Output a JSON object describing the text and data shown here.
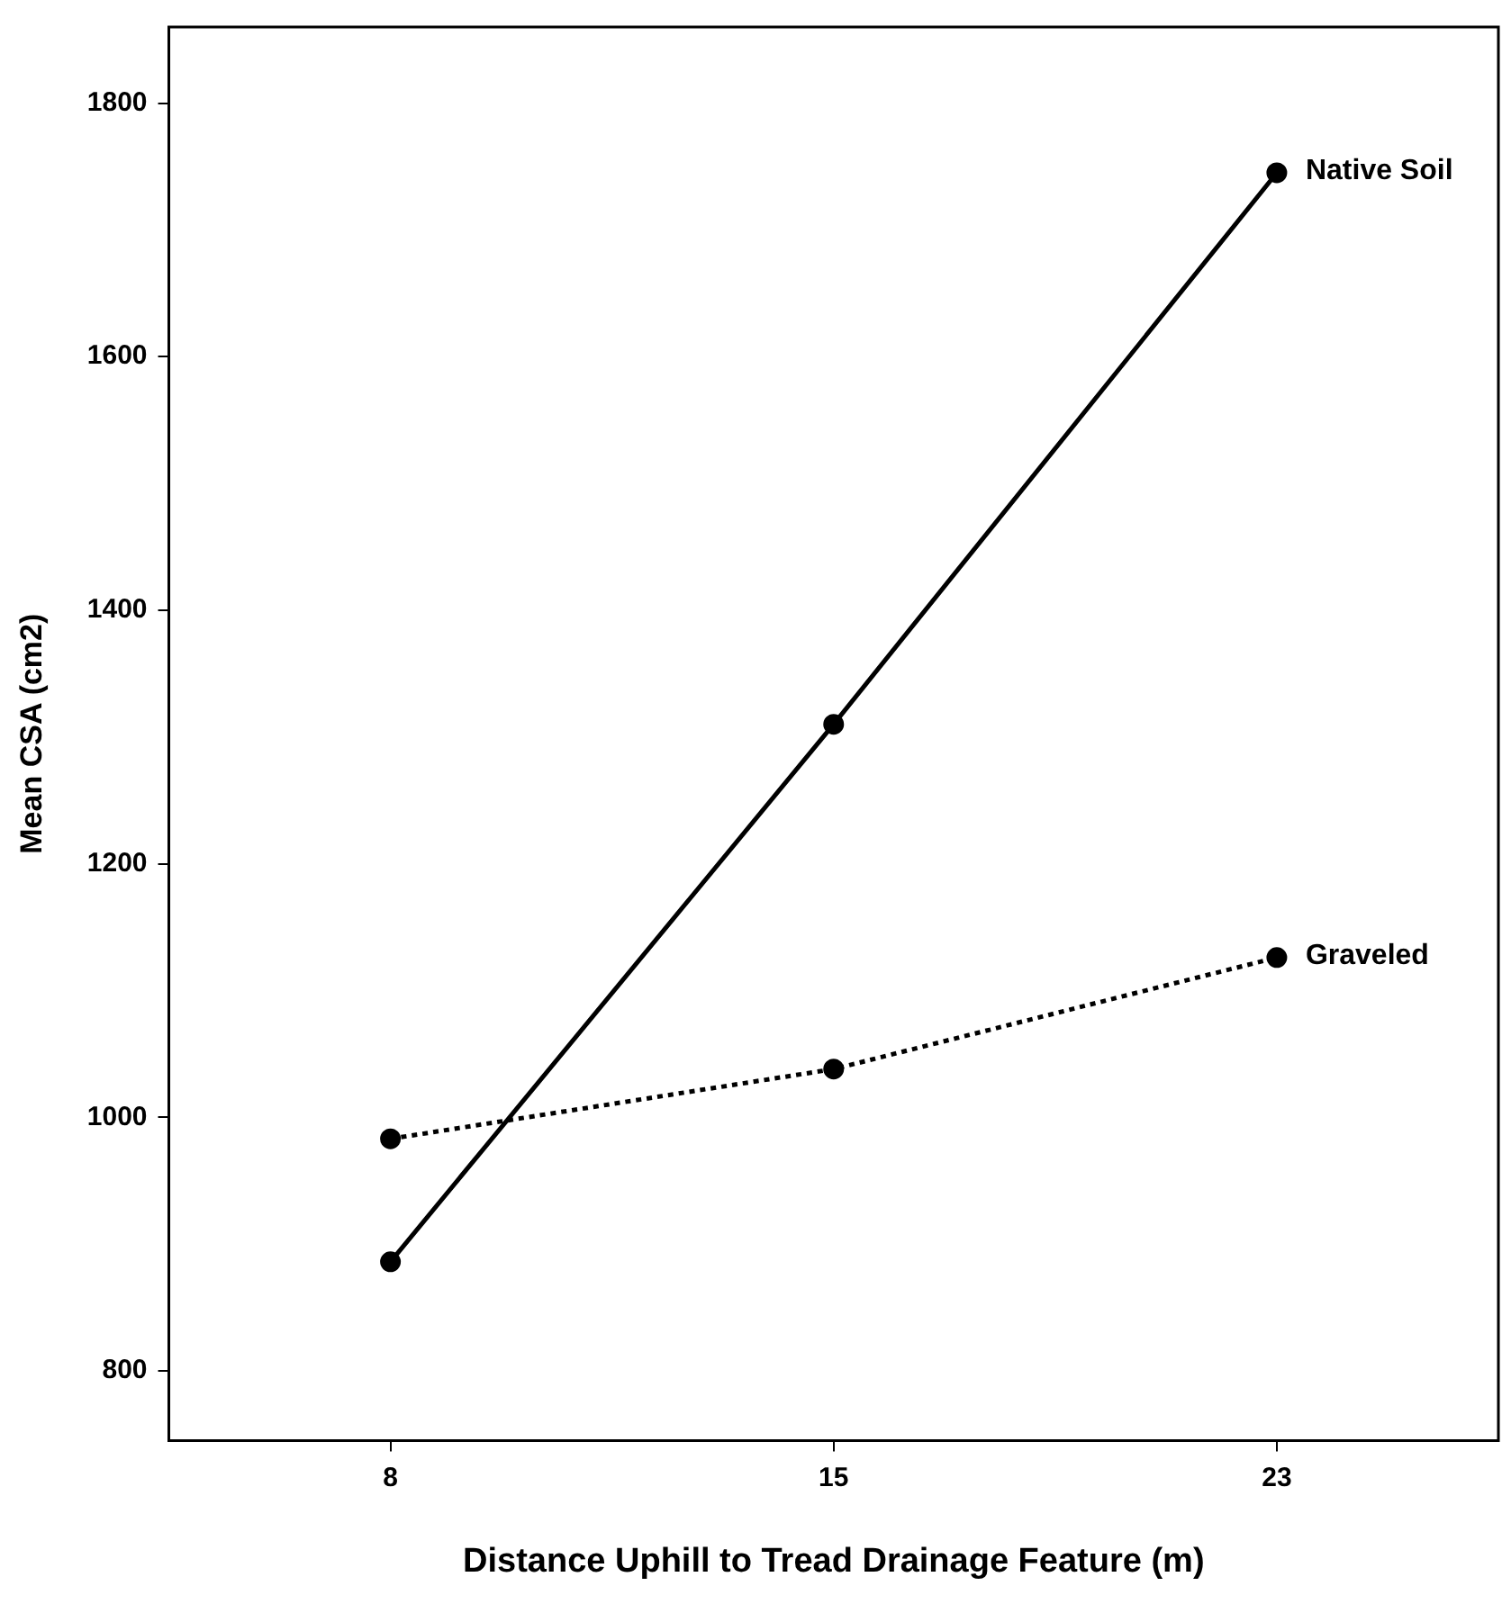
{
  "chart_data": {
    "type": "line",
    "xlabel": "Distance Uphill to Tread Drainage Feature (m)",
    "ylabel": "Mean CSA (cm2)",
    "categories": [
      "8",
      "15",
      "23"
    ],
    "series": [
      {
        "name": "Native Soil",
        "color": "#000000",
        "values": [
          886,
          1310,
          1745
        ],
        "line_style": "solid"
      },
      {
        "name": "Graveled",
        "color": "#000000",
        "values": [
          983,
          1038,
          1126
        ],
        "line_style": "dotted"
      }
    ],
    "ylim": [
      745,
      1860
    ],
    "yticks": [
      800,
      1000,
      1200,
      1400,
      1600,
      1800
    ],
    "grid": false,
    "legend": false,
    "marker": "circle"
  }
}
